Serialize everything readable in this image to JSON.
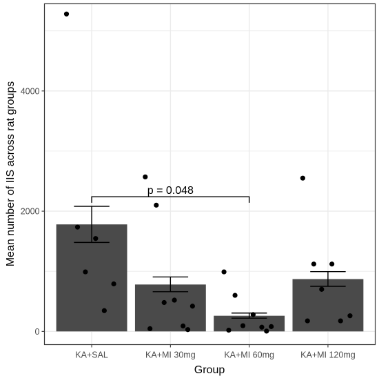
{
  "chart_data": {
    "type": "bar",
    "xlabel": "Group",
    "ylabel": "Mean number of IIS across rat groups",
    "ylim": [
      -220,
      5450
    ],
    "yticks": [
      0,
      2000,
      4000
    ],
    "grid": true,
    "categories": [
      "KA+SAL",
      "KA+MI 30mg",
      "KA+MI 60mg",
      "KA+MI 120mg"
    ],
    "values": [
      1780,
      780,
      260,
      870
    ],
    "error_low": [
      1480,
      660,
      220,
      750
    ],
    "error_high": [
      2080,
      905,
      305,
      995
    ],
    "points": [
      [
        5280,
        1735,
        1545,
        990,
        790,
        345
      ],
      [
        2570,
        2100,
        520,
        480,
        420,
        90,
        45,
        30
      ],
      [
        990,
        600,
        280,
        95,
        80,
        70,
        20,
        5
      ],
      [
        2550,
        1120,
        1120,
        700,
        260,
        175,
        175
      ]
    ],
    "colors": {
      "bar": "#4a4a4a",
      "panel": "#ffffff",
      "grid": "#ebebeb",
      "point": "#000000",
      "border": "#333333"
    },
    "annotation": {
      "text": "p = 0.048",
      "from": "KA+SAL",
      "to": "KA+MI 60mg",
      "y": 2240,
      "drop": 100
    }
  }
}
